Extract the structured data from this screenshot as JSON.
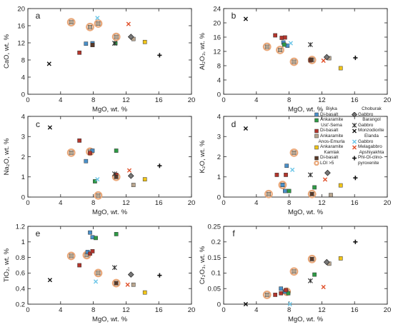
{
  "x_axis": {
    "label": "MgO, wt. %",
    "range": [
      0,
      20
    ],
    "ticks": [
      0,
      4,
      8,
      12,
      16,
      20
    ]
  },
  "legend": {
    "left": [
      {
        "group": "Biyka",
        "entries": [
          {
            "series": "biyka_db",
            "label": "Di-basalt"
          },
          {
            "series": "biyka_ank",
            "label": "Ankaramite"
          }
        ]
      },
      {
        "group": "Ust'-Sema",
        "entries": [
          {
            "series": "ust_db",
            "label": "Di-basalt"
          },
          {
            "series": "ust_ank",
            "label": "Ankaramite"
          }
        ]
      },
      {
        "group": "Anos-Emurla",
        "entries": [
          {
            "series": "anos_ank",
            "label": "Ankaramite"
          }
        ]
      },
      {
        "group": "Kamlak",
        "entries": [
          {
            "series": "kamlak_db",
            "label": "Di-basalt"
          }
        ]
      },
      {
        "group": "",
        "entries": [
          {
            "series": "loi",
            "label": "LOI >5"
          }
        ]
      }
    ],
    "right": [
      {
        "group": "Choburak",
        "entries": [
          {
            "series": "chob_gabbro",
            "label": "Gabbro"
          }
        ]
      },
      {
        "group": "Barangol",
        "entries": [
          {
            "series": "bar_gabbro",
            "label": "Gabbro"
          },
          {
            "series": "bar_monzo",
            "label": "Monzodiorite"
          }
        ]
      },
      {
        "group": "Elanda",
        "entries": [
          {
            "series": "el_gabbro",
            "label": "Gabbro"
          },
          {
            "series": "el_mela",
            "label": "Melagabbro"
          }
        ]
      },
      {
        "group": "Apshiyakhta",
        "entries": [
          {
            "series": "aps_phl",
            "label": "Phl-Ol-clino-"
          },
          {
            "series": "",
            "label": "pyroxenite"
          }
        ]
      }
    ]
  },
  "styles": {
    "biyka_db": {
      "marker": "square",
      "color": "#4a90c9"
    },
    "biyka_ank": {
      "marker": "square",
      "color": "#2e9a45"
    },
    "ust_db": {
      "marker": "square",
      "color": "#b3352c"
    },
    "ust_ank": {
      "marker": "square",
      "color": "#b8a58e"
    },
    "anos_ank": {
      "marker": "square",
      "color": "#f0c419"
    },
    "kamlak_db": {
      "marker": "square",
      "color": "#5a3a28"
    },
    "chob_gabbro": {
      "marker": "diamond",
      "color": "#777777"
    },
    "bar_gabbro": {
      "marker": "asterisk",
      "color": "#333333"
    },
    "bar_monzo": {
      "marker": "x",
      "color": "#111111"
    },
    "el_gabbro": {
      "marker": "x",
      "color": "#6cc6e8"
    },
    "el_mela": {
      "marker": "x",
      "color": "#e0502a"
    },
    "aps_phl": {
      "marker": "plus",
      "color": "#111111"
    },
    "loi": {
      "marker": "circle",
      "color": "#e9a87a"
    }
  },
  "chart_data": [
    {
      "type": "scatter",
      "label": "a",
      "ylabel": "CaO, wt. %",
      "ylim": [
        0,
        20
      ],
      "yticks": [
        0,
        4,
        8,
        12,
        16,
        20
      ],
      "series": {
        "biyka_db": [
          [
            7.1,
            11.8
          ],
          [
            7.9,
            11.9
          ]
        ],
        "biyka_ank": [
          [
            10.7,
            11.9
          ]
        ],
        "ust_db": [
          [
            6.3,
            9.7
          ],
          [
            7.9,
            11.5
          ]
        ],
        "ust_ank": [
          [
            5.3,
            16.8
          ],
          [
            7.6,
            15.7
          ],
          [
            8.6,
            16.5
          ],
          [
            10.8,
            13.4
          ],
          [
            12.9,
            12.9
          ]
        ],
        "anos_ank": [
          [
            14.3,
            12.2
          ]
        ],
        "kamlak_db": [
          [
            7.9,
            11.5
          ]
        ],
        "chob_gabbro": [
          [
            12.6,
            13.4
          ]
        ],
        "bar_gabbro": [
          [
            10.6,
            11.9
          ]
        ],
        "bar_monzo": [
          [
            2.6,
            7.1
          ]
        ],
        "el_gabbro": [
          [
            8.5,
            17.8
          ]
        ],
        "el_mela": [
          [
            12.3,
            16.4
          ]
        ],
        "aps_phl": [
          [
            16.1,
            9.1
          ]
        ],
        "loi": [
          [
            5.3,
            16.8
          ],
          [
            7.6,
            15.7
          ],
          [
            8.6,
            16.5
          ],
          [
            10.8,
            13.4
          ]
        ]
      }
    },
    {
      "type": "scatter",
      "label": "b",
      "ylabel": "Al₂O₃, wt. %",
      "ylim": [
        0,
        24
      ],
      "yticks": [
        0,
        4,
        8,
        12,
        16,
        20,
        24
      ],
      "series": {
        "biyka_db": [
          [
            7.3,
            14.5
          ],
          [
            7.8,
            13.6
          ]
        ],
        "biyka_ank": [
          [
            7.4,
            13.9
          ]
        ],
        "ust_db": [
          [
            6.3,
            16.5
          ],
          [
            7.1,
            15.8
          ],
          [
            7.5,
            15.9
          ],
          [
            10.6,
            9.5
          ]
        ],
        "ust_ank": [
          [
            5.3,
            13.3
          ],
          [
            6.9,
            12.4
          ],
          [
            8.6,
            9.1
          ],
          [
            10.8,
            9.6
          ],
          [
            12.9,
            10.1
          ]
        ],
        "anos_ank": [
          [
            14.3,
            7.3
          ]
        ],
        "kamlak_db": [
          [
            10.7,
            9.7
          ]
        ],
        "chob_gabbro": [
          [
            12.6,
            10.4
          ]
        ],
        "bar_gabbro": [
          [
            10.6,
            13.9
          ]
        ],
        "bar_monzo": [
          [
            2.7,
            21.1
          ]
        ],
        "el_gabbro": [
          [
            8.2,
            14.3
          ]
        ],
        "el_mela": [
          [
            12.2,
            9.4
          ]
        ],
        "aps_phl": [
          [
            16.1,
            10.2
          ]
        ],
        "loi": [
          [
            5.3,
            13.3
          ],
          [
            6.9,
            12.4
          ],
          [
            8.6,
            9.1
          ],
          [
            10.8,
            9.6
          ]
        ]
      }
    },
    {
      "type": "scatter",
      "label": "c",
      "ylabel": "Na₂O, wt. %",
      "ylim": [
        0,
        4
      ],
      "yticks": [
        0,
        1,
        2,
        3,
        4
      ],
      "series": {
        "biyka_db": [
          [
            7.1,
            1.78
          ],
          [
            7.9,
            2.3
          ]
        ],
        "biyka_ank": [
          [
            8.2,
            0.78
          ],
          [
            10.8,
            2.3
          ]
        ],
        "ust_db": [
          [
            6.3,
            2.8
          ],
          [
            7.6,
            2.18
          ],
          [
            10.8,
            1.1
          ]
        ],
        "ust_ank": [
          [
            5.3,
            2.2
          ],
          [
            7.6,
            2.25
          ],
          [
            8.6,
            0.08
          ],
          [
            10.8,
            1.0
          ],
          [
            12.9,
            0.6
          ]
        ],
        "anos_ank": [
          [
            14.3,
            0.88
          ]
        ],
        "kamlak_db": [
          [
            10.8,
            1.0
          ]
        ],
        "chob_gabbro": [
          [
            12.6,
            1.05
          ]
        ],
        "bar_gabbro": [
          [
            10.6,
            1.15
          ]
        ],
        "bar_monzo": [
          [
            2.7,
            3.45
          ]
        ],
        "el_gabbro": [
          [
            8.5,
            0.88
          ]
        ],
        "el_mela": [
          [
            12.4,
            1.32
          ]
        ],
        "aps_phl": [
          [
            16.1,
            1.55
          ]
        ],
        "loi": [
          [
            5.3,
            2.2
          ],
          [
            7.6,
            2.25
          ],
          [
            8.6,
            0.08
          ],
          [
            10.8,
            1.0
          ]
        ]
      }
    },
    {
      "type": "scatter",
      "label": "d",
      "ylabel": "K₂O, wt. %",
      "ylim": [
        0,
        4
      ],
      "yticks": [
        0,
        1,
        2,
        3,
        4
      ],
      "series": {
        "biyka_db": [
          [
            7.2,
            0.6
          ],
          [
            7.7,
            1.55
          ],
          [
            7.5,
            0.3
          ]
        ],
        "biyka_ank": [
          [
            8.0,
            0.3
          ],
          [
            11.1,
            0.48
          ]
        ],
        "ust_db": [
          [
            6.5,
            1.1
          ],
          [
            7.6,
            1.1
          ]
        ],
        "ust_ank": [
          [
            5.5,
            0.15
          ],
          [
            7.2,
            0.6
          ],
          [
            8.6,
            2.2
          ],
          [
            10.8,
            0.15
          ],
          [
            13.1,
            0.1
          ]
        ],
        "anos_ank": [
          [
            14.3,
            0.58
          ]
        ],
        "kamlak_db": [
          [
            10.8,
            0.15
          ]
        ],
        "chob_gabbro": [
          [
            12.7,
            1.2
          ]
        ],
        "bar_gabbro": [
          [
            10.6,
            1.1
          ]
        ],
        "bar_monzo": [
          [
            2.7,
            3.4
          ]
        ],
        "el_gabbro": [
          [
            8.4,
            1.35
          ]
        ],
        "el_mela": [
          [
            12.4,
            0.87
          ]
        ],
        "aps_phl": [
          [
            16.1,
            0.95
          ]
        ],
        "loi": [
          [
            5.5,
            0.15
          ],
          [
            7.2,
            0.6
          ],
          [
            8.6,
            2.2
          ],
          [
            10.8,
            0.15
          ]
        ]
      }
    },
    {
      "type": "scatter",
      "label": "e",
      "ylabel": "TiO₂, wt. %",
      "ylim": [
        0.2,
        1.2
      ],
      "yticks": [
        0.2,
        0.4,
        0.6,
        0.8,
        1.0,
        1.2
      ],
      "series": {
        "biyka_db": [
          [
            7.6,
            1.12
          ],
          [
            7.3,
            0.87
          ],
          [
            7.9,
            1.06
          ]
        ],
        "biyka_ank": [
          [
            8.3,
            1.05
          ],
          [
            10.8,
            1.1
          ]
        ],
        "ust_db": [
          [
            6.3,
            0.7
          ],
          [
            7.6,
            0.85
          ],
          [
            7.9,
            0.88
          ]
        ],
        "ust_ank": [
          [
            5.3,
            0.82
          ],
          [
            7.2,
            0.83
          ],
          [
            8.6,
            0.6
          ],
          [
            10.8,
            0.47
          ],
          [
            12.9,
            0.45
          ]
        ],
        "anos_ank": [
          [
            14.3,
            0.35
          ]
        ],
        "kamlak_db": [
          [
            10.8,
            0.47
          ]
        ],
        "chob_gabbro": [
          [
            12.6,
            0.58
          ]
        ],
        "bar_gabbro": [
          [
            10.6,
            0.67
          ]
        ],
        "bar_monzo": [
          [
            2.7,
            0.51
          ]
        ],
        "el_gabbro": [
          [
            8.3,
            0.49
          ]
        ],
        "el_mela": [
          [
            12.2,
            0.45
          ]
        ],
        "aps_phl": [
          [
            16.1,
            0.57
          ]
        ],
        "loi": [
          [
            5.3,
            0.82
          ],
          [
            7.2,
            0.83
          ],
          [
            8.6,
            0.6
          ],
          [
            10.8,
            0.47
          ]
        ]
      }
    },
    {
      "type": "scatter",
      "label": "f",
      "ylabel": "Cr₂O₃, wt. %",
      "ylim": [
        0,
        0.25
      ],
      "yticks": [
        0,
        0.05,
        0.1,
        0.15,
        0.2,
        0.25
      ],
      "series": {
        "biyka_db": [
          [
            7.0,
            0.05
          ],
          [
            7.5,
            0.04
          ]
        ],
        "biyka_ank": [
          [
            7.9,
            0.035
          ],
          [
            11.1,
            0.095
          ]
        ],
        "ust_db": [
          [
            6.3,
            0.03
          ],
          [
            7.0,
            0.035
          ],
          [
            7.6,
            0.045
          ]
        ],
        "ust_ank": [
          [
            5.3,
            0.03
          ],
          [
            7.7,
            0.04
          ],
          [
            8.6,
            0.105
          ],
          [
            10.8,
            0.145
          ],
          [
            12.9,
            0.13
          ]
        ],
        "anos_ank": [
          [
            14.3,
            0.147
          ]
        ],
        "kamlak_db": [
          [
            10.8,
            0.145
          ]
        ],
        "chob_gabbro": [
          [
            12.6,
            0.135
          ]
        ],
        "bar_gabbro": [
          [
            10.6,
            0.075
          ]
        ],
        "bar_monzo": [
          [
            2.7,
            0.0
          ]
        ],
        "el_gabbro": [
          [
            8.1,
            0.0
          ]
        ],
        "el_mela": [
          [
            12.2,
            0.055
          ]
        ],
        "aps_phl": [
          [
            16.1,
            0.2
          ]
        ],
        "loi": [
          [
            5.3,
            0.03
          ],
          [
            7.7,
            0.04
          ],
          [
            8.6,
            0.105
          ],
          [
            10.8,
            0.145
          ]
        ]
      }
    }
  ]
}
